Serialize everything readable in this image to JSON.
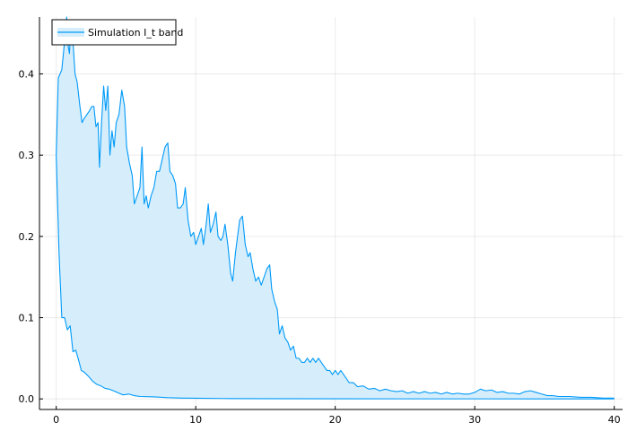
{
  "chart_data": {
    "type": "area",
    "title": "",
    "xlabel": "",
    "ylabel": "",
    "xlim": [
      -1.2,
      40.6
    ],
    "ylim": [
      -0.013,
      0.47
    ],
    "xticks": [
      0,
      10,
      20,
      30,
      40
    ],
    "xtick_labels": [
      "0",
      "10",
      "20",
      "30",
      "40"
    ],
    "yticks": [
      0.0,
      0.1,
      0.2,
      0.3,
      0.4
    ],
    "ytick_labels": [
      "0.0",
      "0.1",
      "0.2",
      "0.3",
      "0.4"
    ],
    "grid": true,
    "legend": {
      "position": "top-left",
      "entries": [
        "Simulation I_t band"
      ]
    },
    "series": [
      {
        "name": "Simulation I_t band",
        "color": "#009af9",
        "fill_color": "#d6eefc",
        "upper": [
          [
            0.0,
            0.3
          ],
          [
            0.15,
            0.395
          ],
          [
            0.4,
            0.405
          ],
          [
            0.6,
            0.44
          ],
          [
            0.75,
            0.47
          ],
          [
            0.85,
            0.435
          ],
          [
            0.95,
            0.425
          ],
          [
            1.05,
            0.46
          ],
          [
            1.2,
            0.44
          ],
          [
            1.35,
            0.4
          ],
          [
            1.5,
            0.39
          ],
          [
            1.7,
            0.36
          ],
          [
            1.85,
            0.34
          ],
          [
            2.0,
            0.345
          ],
          [
            2.2,
            0.35
          ],
          [
            2.4,
            0.355
          ],
          [
            2.55,
            0.36
          ],
          [
            2.7,
            0.36
          ],
          [
            2.85,
            0.335
          ],
          [
            3.0,
            0.34
          ],
          [
            3.1,
            0.285
          ],
          [
            3.25,
            0.34
          ],
          [
            3.4,
            0.385
          ],
          [
            3.55,
            0.355
          ],
          [
            3.7,
            0.385
          ],
          [
            3.85,
            0.3
          ],
          [
            4.0,
            0.33
          ],
          [
            4.15,
            0.31
          ],
          [
            4.3,
            0.34
          ],
          [
            4.5,
            0.35
          ],
          [
            4.7,
            0.38
          ],
          [
            4.9,
            0.36
          ],
          [
            5.05,
            0.31
          ],
          [
            5.25,
            0.29
          ],
          [
            5.45,
            0.275
          ],
          [
            5.6,
            0.24
          ],
          [
            5.8,
            0.25
          ],
          [
            6.0,
            0.26
          ],
          [
            6.15,
            0.31
          ],
          [
            6.3,
            0.24
          ],
          [
            6.45,
            0.25
          ],
          [
            6.6,
            0.235
          ],
          [
            6.8,
            0.25
          ],
          [
            7.0,
            0.26
          ],
          [
            7.2,
            0.28
          ],
          [
            7.4,
            0.28
          ],
          [
            7.6,
            0.295
          ],
          [
            7.8,
            0.31
          ],
          [
            8.0,
            0.315
          ],
          [
            8.15,
            0.28
          ],
          [
            8.35,
            0.275
          ],
          [
            8.55,
            0.265
          ],
          [
            8.7,
            0.235
          ],
          [
            8.9,
            0.235
          ],
          [
            9.1,
            0.24
          ],
          [
            9.25,
            0.26
          ],
          [
            9.45,
            0.22
          ],
          [
            9.65,
            0.2
          ],
          [
            9.85,
            0.205
          ],
          [
            10.0,
            0.19
          ],
          [
            10.2,
            0.2
          ],
          [
            10.4,
            0.21
          ],
          [
            10.55,
            0.19
          ],
          [
            10.75,
            0.215
          ],
          [
            10.9,
            0.24
          ],
          [
            11.05,
            0.205
          ],
          [
            11.25,
            0.215
          ],
          [
            11.45,
            0.23
          ],
          [
            11.6,
            0.2
          ],
          [
            11.8,
            0.195
          ],
          [
            11.95,
            0.2
          ],
          [
            12.1,
            0.215
          ],
          [
            12.3,
            0.19
          ],
          [
            12.5,
            0.155
          ],
          [
            12.65,
            0.145
          ],
          [
            12.85,
            0.18
          ],
          [
            13.0,
            0.2
          ],
          [
            13.15,
            0.22
          ],
          [
            13.35,
            0.225
          ],
          [
            13.55,
            0.19
          ],
          [
            13.75,
            0.175
          ],
          [
            13.9,
            0.18
          ],
          [
            14.1,
            0.16
          ],
          [
            14.3,
            0.145
          ],
          [
            14.5,
            0.15
          ],
          [
            14.7,
            0.14
          ],
          [
            14.9,
            0.15
          ],
          [
            15.1,
            0.16
          ],
          [
            15.3,
            0.165
          ],
          [
            15.45,
            0.135
          ],
          [
            15.65,
            0.12
          ],
          [
            15.85,
            0.11
          ],
          [
            16.0,
            0.08
          ],
          [
            16.2,
            0.09
          ],
          [
            16.4,
            0.075
          ],
          [
            16.6,
            0.07
          ],
          [
            16.8,
            0.06
          ],
          [
            17.0,
            0.065
          ],
          [
            17.2,
            0.05
          ],
          [
            17.4,
            0.05
          ],
          [
            17.6,
            0.045
          ],
          [
            17.8,
            0.045
          ],
          [
            18.0,
            0.05
          ],
          [
            18.2,
            0.045
          ],
          [
            18.4,
            0.05
          ],
          [
            18.6,
            0.045
          ],
          [
            18.8,
            0.05
          ],
          [
            19.0,
            0.045
          ],
          [
            19.2,
            0.04
          ],
          [
            19.4,
            0.035
          ],
          [
            19.6,
            0.035
          ],
          [
            19.8,
            0.03
          ],
          [
            20.0,
            0.035
          ],
          [
            20.2,
            0.03
          ],
          [
            20.4,
            0.035
          ],
          [
            20.6,
            0.03
          ],
          [
            20.8,
            0.025
          ],
          [
            21.0,
            0.02
          ],
          [
            21.3,
            0.02
          ],
          [
            21.6,
            0.015
          ],
          [
            22.0,
            0.016
          ],
          [
            22.4,
            0.012
          ],
          [
            22.8,
            0.013
          ],
          [
            23.2,
            0.01
          ],
          [
            23.6,
            0.012
          ],
          [
            24.0,
            0.01
          ],
          [
            24.4,
            0.009
          ],
          [
            24.8,
            0.01
          ],
          [
            25.2,
            0.007
          ],
          [
            25.6,
            0.009
          ],
          [
            26.0,
            0.007
          ],
          [
            26.4,
            0.009
          ],
          [
            26.8,
            0.007
          ],
          [
            27.2,
            0.008
          ],
          [
            27.6,
            0.006
          ],
          [
            28.0,
            0.008
          ],
          [
            28.4,
            0.006
          ],
          [
            28.8,
            0.007
          ],
          [
            29.2,
            0.006
          ],
          [
            29.6,
            0.006
          ],
          [
            30.0,
            0.008
          ],
          [
            30.4,
            0.012
          ],
          [
            30.8,
            0.01
          ],
          [
            31.2,
            0.011
          ],
          [
            31.6,
            0.008
          ],
          [
            32.0,
            0.009
          ],
          [
            32.4,
            0.007
          ],
          [
            32.8,
            0.007
          ],
          [
            33.2,
            0.006
          ],
          [
            33.6,
            0.009
          ],
          [
            34.0,
            0.01
          ],
          [
            34.4,
            0.008
          ],
          [
            34.8,
            0.006
          ],
          [
            35.2,
            0.004
          ],
          [
            35.6,
            0.004
          ],
          [
            36.0,
            0.003
          ],
          [
            36.8,
            0.003
          ],
          [
            37.6,
            0.002
          ],
          [
            38.4,
            0.002
          ],
          [
            39.2,
            0.001
          ],
          [
            40.0,
            0.001
          ]
        ],
        "lower": [
          [
            0.0,
            0.3
          ],
          [
            0.2,
            0.18
          ],
          [
            0.4,
            0.1
          ],
          [
            0.6,
            0.1
          ],
          [
            0.8,
            0.085
          ],
          [
            1.0,
            0.09
          ],
          [
            1.2,
            0.058
          ],
          [
            1.4,
            0.06
          ],
          [
            1.6,
            0.048
          ],
          [
            1.8,
            0.035
          ],
          [
            2.0,
            0.033
          ],
          [
            2.3,
            0.028
          ],
          [
            2.6,
            0.022
          ],
          [
            2.9,
            0.018
          ],
          [
            3.2,
            0.016
          ],
          [
            3.5,
            0.013
          ],
          [
            3.8,
            0.012
          ],
          [
            4.1,
            0.01
          ],
          [
            4.5,
            0.007
          ],
          [
            4.8,
            0.005
          ],
          [
            5.2,
            0.006
          ],
          [
            5.6,
            0.004
          ],
          [
            6.0,
            0.003
          ],
          [
            7.0,
            0.0025
          ],
          [
            8.0,
            0.0015
          ],
          [
            9.0,
            0.001
          ],
          [
            10.0,
            0.0008
          ],
          [
            12.0,
            0.0005
          ],
          [
            15.0,
            0.0003
          ],
          [
            20.0,
            0.0002
          ],
          [
            25.0,
            0.0001
          ],
          [
            30.0,
            0.0001
          ],
          [
            35.0,
            0.0
          ],
          [
            40.0,
            0.0
          ]
        ]
      }
    ]
  }
}
